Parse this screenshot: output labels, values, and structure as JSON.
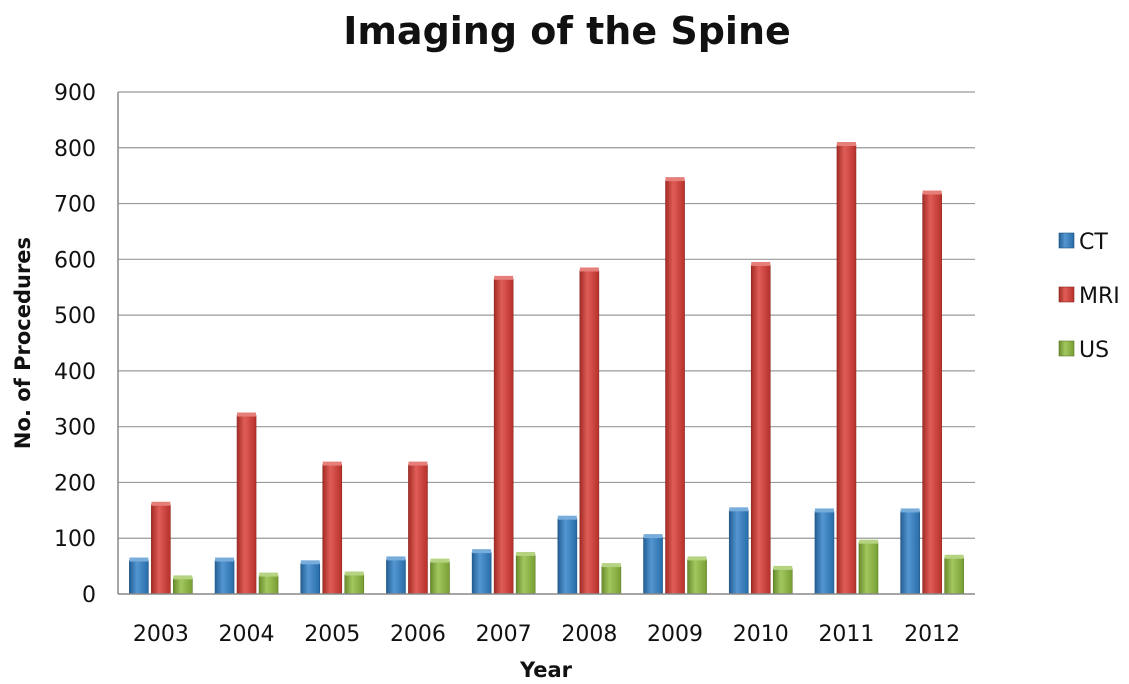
{
  "chart_data": {
    "type": "bar",
    "title": "Imaging of the Spine",
    "xlabel": "Year",
    "ylabel": "No. of Procedures",
    "ylim": [
      0,
      900
    ],
    "yticks": [
      0,
      100,
      200,
      300,
      400,
      500,
      600,
      700,
      800,
      900
    ],
    "grid": true,
    "legend_position": "right",
    "categories": [
      "2003",
      "2004",
      "2005",
      "2006",
      "2007",
      "2008",
      "2009",
      "2010",
      "2011",
      "2012"
    ],
    "series": [
      {
        "name": "CT",
        "color": "#2e7fc7",
        "values": [
          60,
          60,
          55,
          62,
          75,
          135,
          102,
          150,
          148,
          148
        ]
      },
      {
        "name": "MRI",
        "color": "#d93a32",
        "values": [
          160,
          320,
          232,
          232,
          565,
          580,
          742,
          590,
          805,
          718
        ]
      },
      {
        "name": "US",
        "color": "#8dbb3c",
        "values": [
          28,
          33,
          35,
          58,
          70,
          50,
          62,
          45,
          92,
          65
        ]
      }
    ]
  }
}
